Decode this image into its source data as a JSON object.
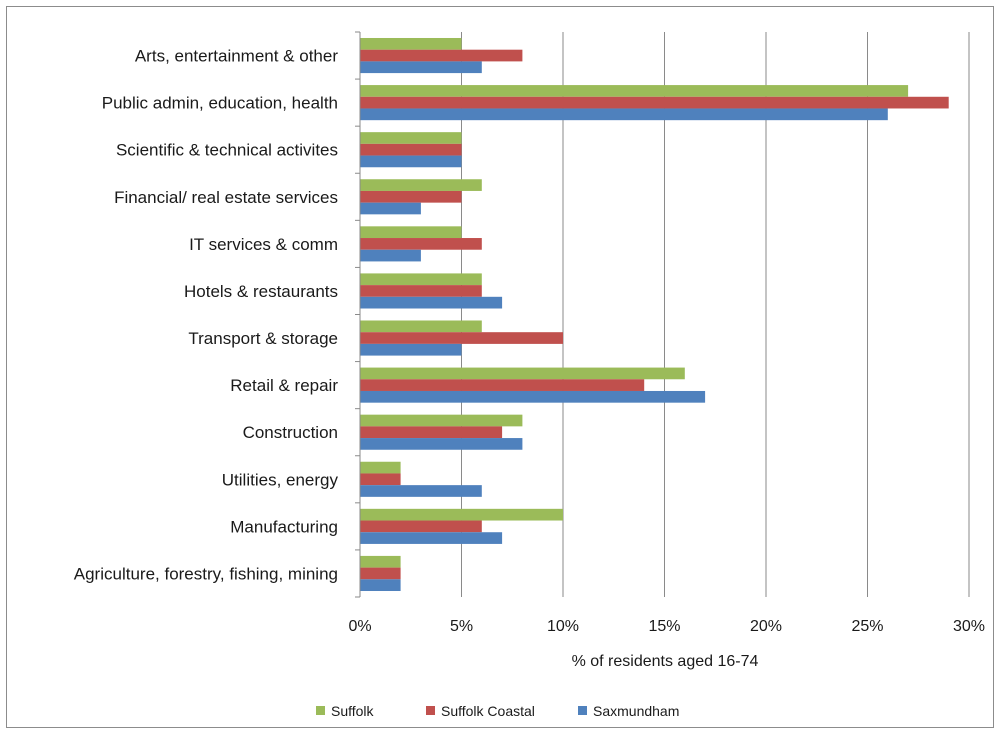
{
  "chart_data": {
    "type": "bar",
    "orientation": "horizontal",
    "categories": [
      "Arts, entertainment & other",
      "Public admin, education, health",
      "Scientific & technical activites",
      "Financial/  real estate services",
      "IT services & comm",
      "Hotels & restaurants",
      "Transport & storage",
      "Retail & repair",
      "Construction",
      "Utilities, energy",
      "Manufacturing",
      "Agriculture, forestry, fishing, mining"
    ],
    "series": [
      {
        "name": "Suffolk",
        "color": "#9bbb59",
        "values": [
          5,
          27,
          5,
          6,
          5,
          6,
          6,
          16,
          8,
          2,
          10,
          2
        ]
      },
      {
        "name": "Suffolk Coastal",
        "color": "#c0504d",
        "values": [
          8,
          29,
          5,
          5,
          6,
          6,
          10,
          14,
          7,
          2,
          6,
          2
        ]
      },
      {
        "name": "Saxmundham",
        "color": "#4f81bd",
        "values": [
          6,
          26,
          5,
          3,
          3,
          7,
          5,
          17,
          8,
          6,
          7,
          2
        ]
      }
    ],
    "xlabel": "% of residents aged 16-74",
    "xlim": [
      0,
      30
    ],
    "xticks": [
      0,
      5,
      10,
      15,
      20,
      25,
      30
    ],
    "xtick_labels": [
      "0%",
      "5%",
      "10%",
      "15%",
      "20%",
      "25%",
      "30%"
    ],
    "grid": "vertical",
    "legend_position": "bottom"
  }
}
